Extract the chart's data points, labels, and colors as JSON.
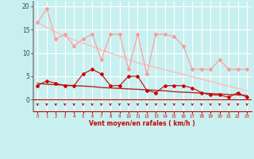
{
  "x": [
    0,
    1,
    2,
    3,
    4,
    5,
    6,
    7,
    8,
    9,
    10,
    11,
    12,
    13,
    14,
    15,
    16,
    17,
    18,
    19,
    20,
    21,
    22,
    23
  ],
  "rafales": [
    16.5,
    19.5,
    13.0,
    14.0,
    11.5,
    13.0,
    14.0,
    8.5,
    14.0,
    14.0,
    6.5,
    14.0,
    5.5,
    14.0,
    14.0,
    13.5,
    11.5,
    6.5,
    6.5,
    6.5,
    8.5,
    6.5,
    6.5,
    6.5
  ],
  "trend_rafales": [
    16.5,
    15.5,
    14.5,
    13.5,
    12.8,
    12.1,
    11.4,
    10.7,
    10.0,
    9.3,
    8.6,
    7.9,
    7.4,
    6.9,
    6.4,
    5.9,
    5.4,
    4.9,
    4.4,
    3.9,
    3.4,
    2.9,
    2.4,
    1.9
  ],
  "vent_moyen": [
    3.0,
    4.0,
    3.5,
    3.0,
    3.0,
    5.5,
    6.5,
    5.5,
    3.0,
    3.0,
    5.0,
    5.0,
    2.0,
    1.5,
    3.0,
    3.0,
    3.0,
    2.5,
    1.5,
    1.0,
    1.0,
    0.5,
    1.5,
    0.5
  ],
  "trend_vent": [
    3.5,
    3.3,
    3.2,
    3.1,
    3.0,
    2.9,
    2.8,
    2.6,
    2.5,
    2.4,
    2.3,
    2.2,
    2.1,
    2.0,
    1.9,
    1.7,
    1.6,
    1.5,
    1.4,
    1.3,
    1.2,
    1.1,
    1.0,
    0.9
  ],
  "ylabel_ticks": [
    0,
    5,
    10,
    15,
    20
  ],
  "xlim": [
    -0.5,
    23.5
  ],
  "ylim": [
    -2.5,
    21
  ],
  "bg_color": "#c8f0f0",
  "grid_color": "#a8d8d8",
  "rafales_color": "#ff9999",
  "vent_color": "#cc0000",
  "trend_color_rafales": "#ffbbbb",
  "trend_color_vent": "#bb2222",
  "arrow_color": "#cc0000",
  "xlabel": "Vent moyen/en rafales ( km/h )",
  "xlabel_color": "#cc0000",
  "tick_label_color": "#cc0000",
  "ytick_color": "#444444"
}
